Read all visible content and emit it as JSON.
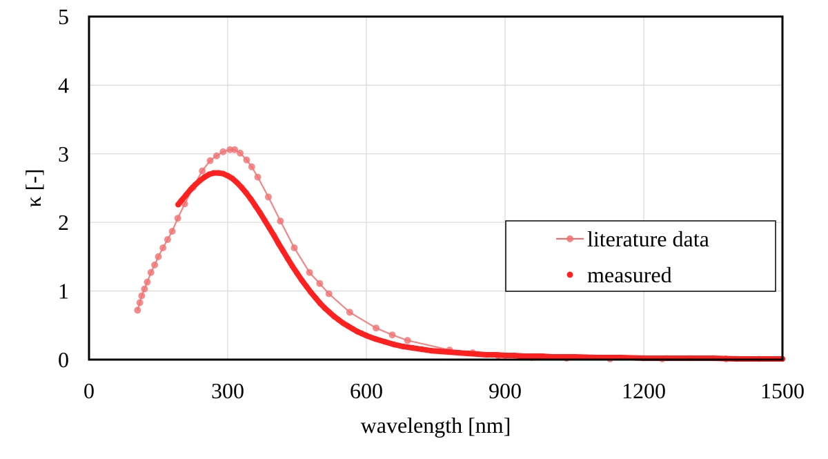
{
  "chart_data": {
    "type": "scatter",
    "title": "",
    "xlabel": "wavelength [nm]",
    "ylabel": "κ [-]",
    "xlim": [
      0,
      1500
    ],
    "ylim": [
      0,
      5
    ],
    "x_ticks": [
      "0",
      "300",
      "600",
      "900",
      "1200",
      "1500"
    ],
    "y_ticks": [
      "0",
      "1",
      "2",
      "3",
      "4",
      "5"
    ],
    "grid": true,
    "legend_position": "middle-right",
    "series": [
      {
        "name": "literature data",
        "style": "line-with-markers",
        "color": "#f07070",
        "x": [
          105,
          110,
          114,
          120,
          126,
          134,
          142,
          150,
          160,
          170,
          180,
          192,
          207,
          225,
          245,
          262,
          276,
          290,
          305,
          315,
          327,
          341,
          352,
          365,
          388,
          414,
          444,
          477,
          499,
          519,
          564,
          621,
          656,
          689,
          780,
          830,
          885,
          958,
          1033,
          1127,
          1240,
          1378
        ],
        "y": [
          0.72,
          0.83,
          0.93,
          1.03,
          1.13,
          1.27,
          1.38,
          1.5,
          1.63,
          1.75,
          1.87,
          2.06,
          2.27,
          2.51,
          2.75,
          2.9,
          2.97,
          3.03,
          3.06,
          3.06,
          3.01,
          2.91,
          2.81,
          2.66,
          2.37,
          2.02,
          1.63,
          1.27,
          1.11,
          0.96,
          0.69,
          0.46,
          0.36,
          0.28,
          0.14,
          0.1,
          0.06,
          0.03,
          0.02,
          0.01,
          0.01,
          0.01
        ]
      },
      {
        "name": "measured",
        "style": "dense-markers",
        "color": "#ff2020",
        "x": [
          193,
          200,
          210,
          220,
          230,
          240,
          250,
          260,
          270,
          280,
          290,
          300,
          310,
          320,
          330,
          340,
          350,
          360,
          370,
          380,
          390,
          400,
          410,
          420,
          430,
          440,
          450,
          460,
          470,
          480,
          490,
          500,
          510,
          520,
          530,
          540,
          550,
          560,
          570,
          580,
          590,
          600,
          620,
          640,
          660,
          680,
          700,
          720,
          740,
          760,
          780,
          800,
          820,
          840,
          860,
          880,
          900,
          920,
          940,
          960,
          980,
          1000,
          1050,
          1100,
          1150,
          1200,
          1250,
          1300,
          1350,
          1400,
          1450,
          1500
        ],
        "y": [
          2.26,
          2.32,
          2.4,
          2.48,
          2.55,
          2.61,
          2.66,
          2.7,
          2.72,
          2.72,
          2.71,
          2.68,
          2.64,
          2.58,
          2.51,
          2.43,
          2.34,
          2.24,
          2.14,
          2.03,
          1.92,
          1.81,
          1.69,
          1.58,
          1.47,
          1.36,
          1.26,
          1.16,
          1.07,
          0.98,
          0.9,
          0.82,
          0.75,
          0.69,
          0.63,
          0.58,
          0.53,
          0.49,
          0.45,
          0.41,
          0.38,
          0.35,
          0.3,
          0.26,
          0.22,
          0.19,
          0.17,
          0.15,
          0.13,
          0.12,
          0.11,
          0.1,
          0.09,
          0.08,
          0.07,
          0.07,
          0.06,
          0.06,
          0.05,
          0.05,
          0.05,
          0.04,
          0.04,
          0.03,
          0.03,
          0.02,
          0.02,
          0.02,
          0.02,
          0.01,
          0.01,
          0.01
        ]
      }
    ]
  }
}
